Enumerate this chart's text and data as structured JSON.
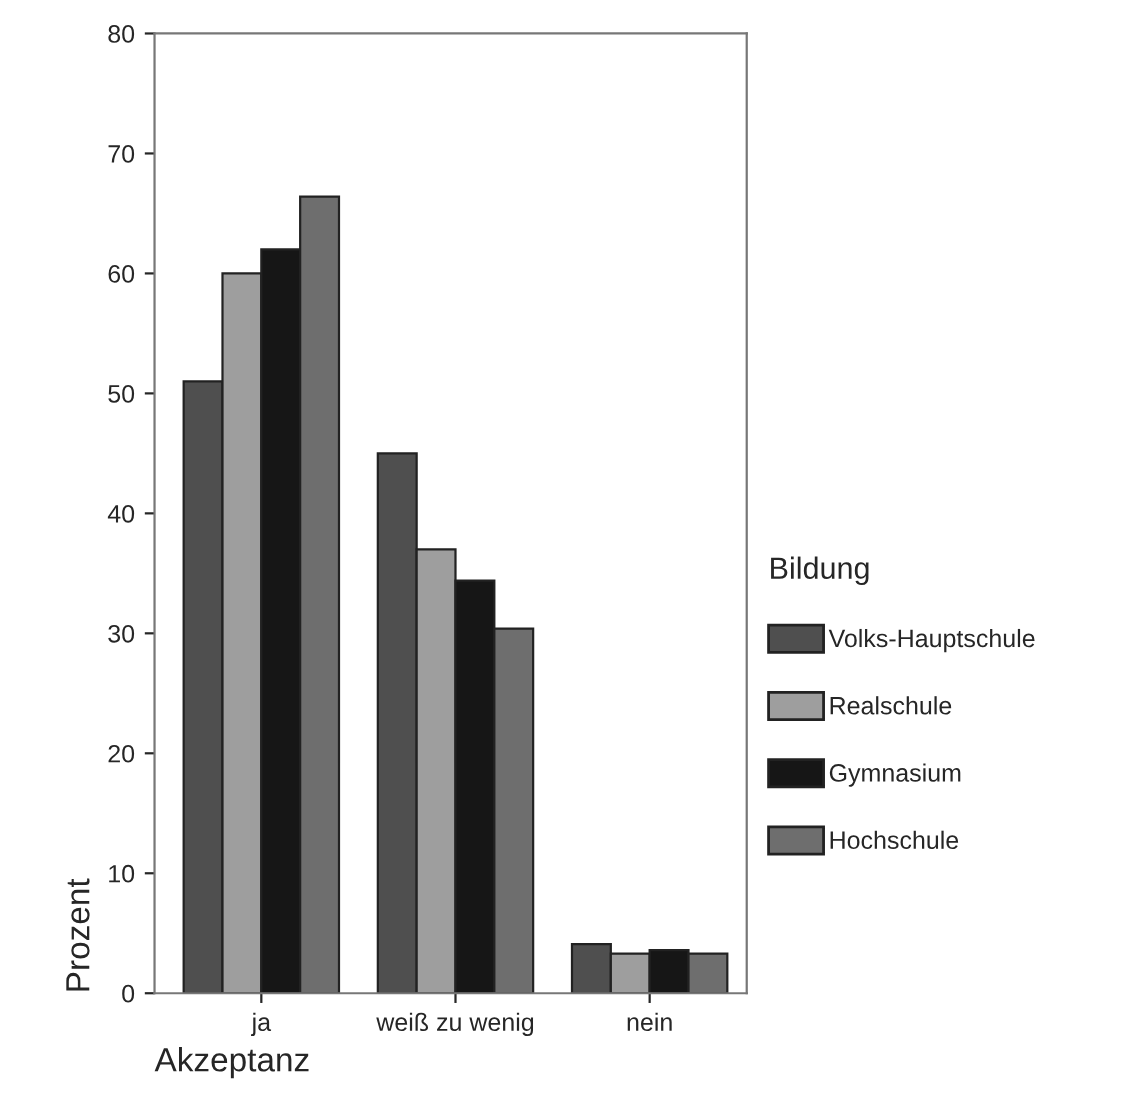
{
  "chart_data": {
    "type": "bar",
    "xlabel": "Akzeptanz",
    "ylabel": "Prozent",
    "legend_title": "Bildung",
    "categories": [
      "ja",
      "weiß zu wenig",
      "nein"
    ],
    "series": [
      {
        "name": "Volks-Hauptschule",
        "color": "#4f4f4f",
        "values": [
          51,
          45,
          4.1
        ]
      },
      {
        "name": "Realschule",
        "color": "#9e9e9e",
        "values": [
          60,
          37,
          3.3
        ]
      },
      {
        "name": "Gymnasium",
        "color": "#161616",
        "values": [
          62,
          34.4,
          3.6
        ]
      },
      {
        "name": "Hochschule",
        "color": "#6e6e6e",
        "values": [
          66.4,
          30.4,
          3.3
        ]
      }
    ],
    "ylim": [
      0,
      80
    ],
    "yticks": [
      0,
      10,
      20,
      30,
      40,
      50,
      60,
      70,
      80
    ],
    "grid": false,
    "legend": "right"
  }
}
